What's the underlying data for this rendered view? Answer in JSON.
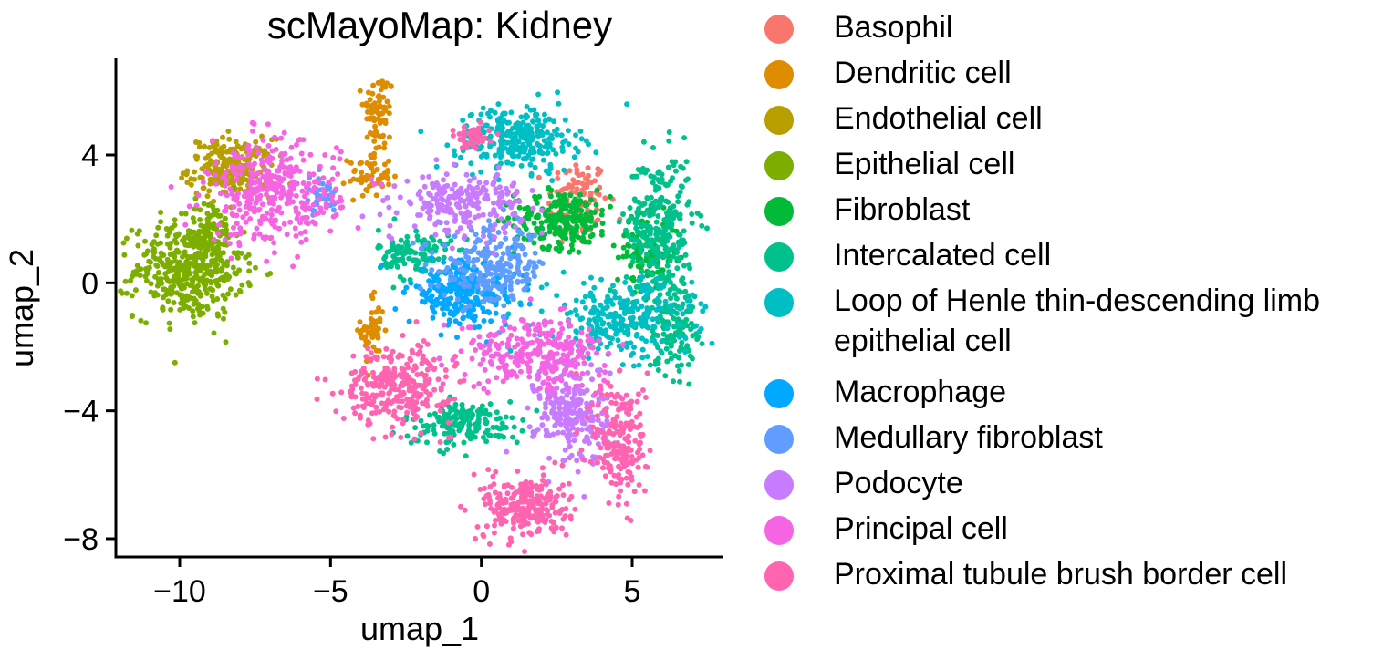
{
  "chart_data": {
    "type": "scatter",
    "title": "scMayoMap: Kidney",
    "xlabel": "umap_1",
    "ylabel": "umap_2",
    "xlim": [
      -12,
      8
    ],
    "ylim": [
      -8.5,
      6.5
    ],
    "xticks": [
      {
        "value": -10,
        "label": "−10"
      },
      {
        "value": -5,
        "label": "−5"
      },
      {
        "value": 0,
        "label": "0"
      },
      {
        "value": 5,
        "label": "5"
      }
    ],
    "yticks": [
      {
        "value": 4,
        "label": "4"
      },
      {
        "value": 0,
        "label": "0"
      },
      {
        "value": -4,
        "label": "−4"
      },
      {
        "value": -8,
        "label": "−8"
      }
    ],
    "grid": false,
    "legend_position": "right",
    "series": [
      {
        "name": "Basophil",
        "color": "#F8766D",
        "clusters": [
          {
            "cx": 3.2,
            "cy": 2.5,
            "sx": 0.5,
            "sy": 0.7,
            "n": 130
          }
        ]
      },
      {
        "name": "Dendritic cell",
        "color": "#DE8C00",
        "clusters": [
          {
            "cx": -3.4,
            "cy": 5.4,
            "sx": 0.25,
            "sy": 0.6,
            "n": 70
          },
          {
            "cx": -3.7,
            "cy": 3.4,
            "sx": 0.35,
            "sy": 0.35,
            "n": 60
          },
          {
            "cx": -3.6,
            "cy": -1.5,
            "sx": 0.2,
            "sy": 0.6,
            "n": 50
          }
        ]
      },
      {
        "name": "Endothelial cell",
        "color": "#B79F00",
        "clusters": [
          {
            "cx": -8.3,
            "cy": 3.6,
            "sx": 0.7,
            "sy": 0.45,
            "n": 220
          }
        ]
      },
      {
        "name": "Epithelial cell",
        "color": "#7CAE00",
        "clusters": [
          {
            "cx": -9.7,
            "cy": 0.4,
            "sx": 0.9,
            "sy": 0.75,
            "n": 420
          },
          {
            "cx": -9.0,
            "cy": 1.6,
            "sx": 0.4,
            "sy": 0.5,
            "n": 80
          }
        ]
      },
      {
        "name": "Fibroblast",
        "color": "#00BA38",
        "clusters": [
          {
            "cx": 2.7,
            "cy": 2.0,
            "sx": 0.8,
            "sy": 0.45,
            "n": 240
          },
          {
            "cx": 5.5,
            "cy": 0.8,
            "sx": 0.5,
            "sy": 0.6,
            "n": 120
          }
        ]
      },
      {
        "name": "Intercalated cell",
        "color": "#00C08B",
        "clusters": [
          {
            "cx": 5.9,
            "cy": 1.8,
            "sx": 0.55,
            "sy": 1.1,
            "n": 280
          },
          {
            "cx": 6.3,
            "cy": -1.2,
            "sx": 0.4,
            "sy": 0.8,
            "n": 160
          },
          {
            "cx": -2.2,
            "cy": 0.9,
            "sx": 0.6,
            "sy": 0.4,
            "n": 120
          },
          {
            "cx": -0.6,
            "cy": -4.4,
            "sx": 1.0,
            "sy": 0.35,
            "n": 170
          }
        ]
      },
      {
        "name": "Loop of Henle thin-descending limb epithelial cell",
        "color": "#00BFC4",
        "clusters": [
          {
            "cx": 1.2,
            "cy": 4.5,
            "sx": 1.0,
            "sy": 0.5,
            "n": 280
          },
          {
            "cx": 4.6,
            "cy": -1.1,
            "sx": 1.2,
            "sy": 0.6,
            "n": 260
          }
        ]
      },
      {
        "name": "Macrophage",
        "color": "#00A9FF",
        "clusters": [
          {
            "cx": -0.6,
            "cy": -0.3,
            "sx": 0.9,
            "sy": 0.5,
            "n": 280
          }
        ]
      },
      {
        "name": "Medullary fibroblast",
        "color": "#619CFF",
        "clusters": [
          {
            "cx": 0.4,
            "cy": 0.5,
            "sx": 0.9,
            "sy": 0.6,
            "n": 220
          },
          {
            "cx": -5.3,
            "cy": 2.7,
            "sx": 0.3,
            "sy": 0.3,
            "n": 40
          }
        ]
      },
      {
        "name": "Podocyte",
        "color": "#C77CFF",
        "clusters": [
          {
            "cx": -0.6,
            "cy": 2.5,
            "sx": 1.0,
            "sy": 0.45,
            "n": 220
          },
          {
            "cx": 3.0,
            "cy": -4.1,
            "sx": 0.6,
            "sy": 0.8,
            "n": 240
          }
        ]
      },
      {
        "name": "Principal cell",
        "color": "#F564E3",
        "clusters": [
          {
            "cx": -6.9,
            "cy": 2.8,
            "sx": 1.1,
            "sy": 0.8,
            "n": 360
          },
          {
            "cx": 1.8,
            "cy": -2.2,
            "sx": 1.2,
            "sy": 0.55,
            "n": 280
          }
        ]
      },
      {
        "name": "Proximal tubule brush border cell",
        "color": "#FF64B0",
        "clusters": [
          {
            "cx": -2.8,
            "cy": -3.2,
            "sx": 0.9,
            "sy": 0.6,
            "n": 300
          },
          {
            "cx": 1.5,
            "cy": -7.0,
            "sx": 0.7,
            "sy": 0.5,
            "n": 260
          },
          {
            "cx": 4.6,
            "cy": -5.0,
            "sx": 0.45,
            "sy": 1.0,
            "n": 200
          },
          {
            "cx": -0.2,
            "cy": 4.6,
            "sx": 0.3,
            "sy": 0.2,
            "n": 40
          }
        ]
      }
    ]
  }
}
